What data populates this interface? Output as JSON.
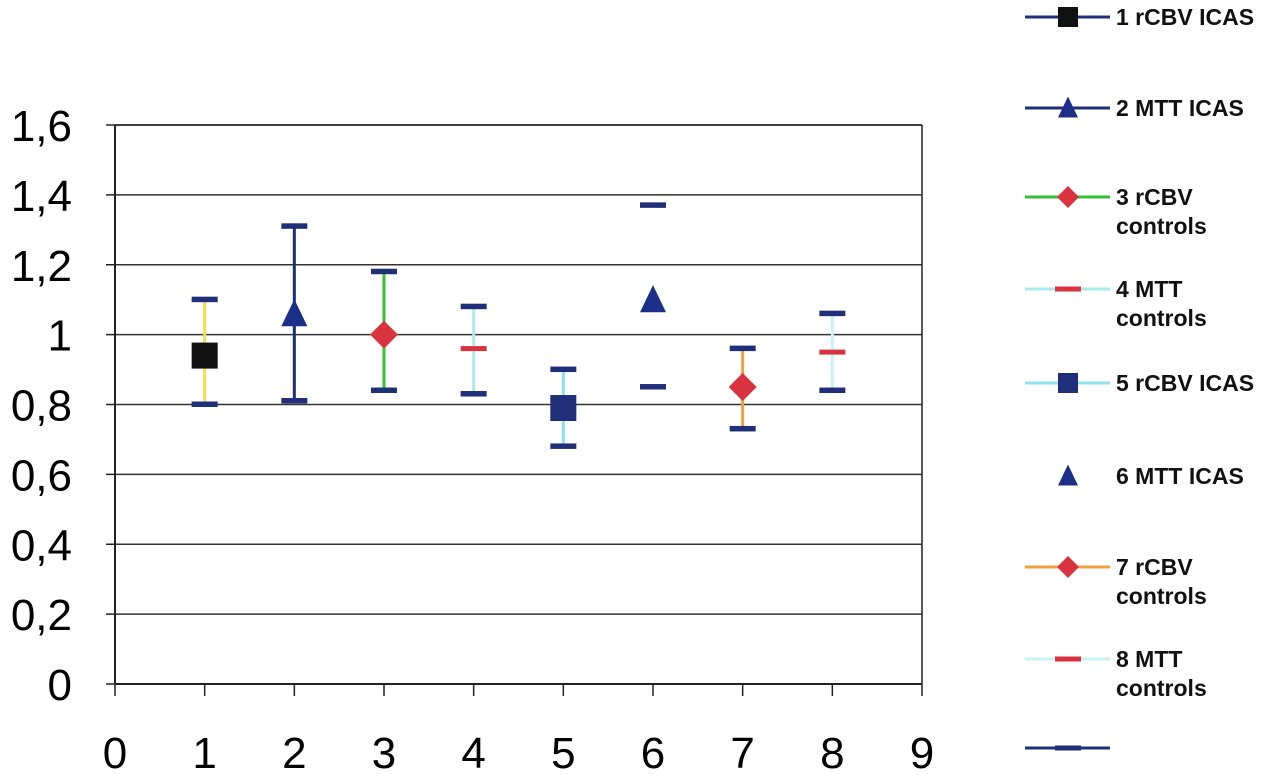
{
  "chart_data": {
    "type": "scatter",
    "title": "",
    "xlabel": "",
    "ylabel": "",
    "xlim": [
      0,
      9
    ],
    "ylim": [
      0,
      1.6
    ],
    "x_ticks": [
      0,
      1,
      2,
      3,
      4,
      5,
      6,
      7,
      8,
      9
    ],
    "x_tick_labels": [
      "0",
      "1",
      "2",
      "3",
      "4",
      "5",
      "6",
      "7",
      "8",
      "9"
    ],
    "y_ticks": [
      0,
      0.2,
      0.4,
      0.6,
      0.8,
      1.0,
      1.2,
      1.4,
      1.6
    ],
    "y_tick_labels": [
      "0",
      "0,2",
      "0,4",
      "0,6",
      "0,8",
      "1",
      "1,2",
      "1,4",
      "1,6"
    ],
    "grid": "horizontal",
    "legend_position": "right",
    "series": [
      {
        "name": "1 rCBV ICAS",
        "legend_lines": [
          "1 rCBV ICAS"
        ],
        "x": 1,
        "y": 0.94,
        "low": 0.8,
        "high": 1.1,
        "marker": "square",
        "marker_color": "#111111",
        "bar_color": "#f2e04a",
        "cap_color": "#1f2f78",
        "legend_line_color": "#1f2f78",
        "show_marker": true,
        "show_bar": true
      },
      {
        "name": "2 MTT ICAS",
        "legend_lines": [
          "2 MTT ICAS"
        ],
        "x": 2,
        "y": 1.06,
        "low": 0.81,
        "high": 1.31,
        "marker": "triangle",
        "marker_color": "#1b2f8a",
        "bar_color": "#1b2f78",
        "cap_color": "#1f2f78",
        "legend_line_color": "#1f2f78",
        "show_marker": true,
        "show_bar": true
      },
      {
        "name": "3 rCBV controls",
        "legend_lines": [
          "3 rCBV",
          "controls"
        ],
        "x": 3,
        "y": 1.0,
        "low": 0.84,
        "high": 1.18,
        "marker": "diamond",
        "marker_color": "#d93340",
        "bar_color": "#33c133",
        "cap_color": "#1f2f78",
        "legend_line_color": "#33c133",
        "show_marker": true,
        "show_bar": true
      },
      {
        "name": "4 MTT controls",
        "legend_lines": [
          "4 MTT",
          "controls"
        ],
        "x": 4,
        "y": 0.96,
        "low": 0.83,
        "high": 1.08,
        "marker": "dash",
        "marker_color": "#d93340",
        "bar_color": "#a9ecf0",
        "cap_color": "#1f2f78",
        "legend_line_color": "#a9ecf0",
        "show_marker": true,
        "show_bar": true
      },
      {
        "name": "5 rCBV ICAS",
        "legend_lines": [
          "5 rCBV ICAS"
        ],
        "x": 5,
        "y": 0.79,
        "low": 0.68,
        "high": 0.9,
        "marker": "square",
        "marker_color": "#1f2f78",
        "bar_color": "#8fe0ee",
        "cap_color": "#1f2f78",
        "legend_line_color": "#8fe0ee",
        "show_marker": true,
        "show_bar": true
      },
      {
        "name": "6 MTT ICAS",
        "legend_lines": [
          "6 MTT ICAS"
        ],
        "x": 6,
        "y": 1.1,
        "low": 0.85,
        "high": 1.37,
        "marker": "triangle",
        "marker_color": "#1b2f8a",
        "bar_color": "#ffffff",
        "cap_color": "#1f2f78",
        "legend_line_color": "#ffffff",
        "show_marker": true,
        "show_bar": false
      },
      {
        "name": "7 rCBV controls",
        "legend_lines": [
          "7 rCBV",
          "controls"
        ],
        "x": 7,
        "y": 0.85,
        "low": 0.73,
        "high": 0.96,
        "marker": "diamond",
        "marker_color": "#d93340",
        "bar_color": "#f0a040",
        "cap_color": "#1f2f78",
        "legend_line_color": "#f0a040",
        "show_marker": true,
        "show_bar": true
      },
      {
        "name": "8 MTT controls",
        "legend_lines": [
          "8 MTT",
          "controls"
        ],
        "x": 8,
        "y": 0.95,
        "low": 0.84,
        "high": 1.06,
        "marker": "dash",
        "marker_color": "#d93340",
        "bar_color": "#c8f2f6",
        "cap_color": "#1f2f78",
        "legend_line_color": "#c8f2f6",
        "show_marker": true,
        "show_bar": true
      },
      {
        "name": "",
        "legend_lines": [],
        "legend_only": true,
        "marker": "dash",
        "marker_color": "#1f2f78",
        "legend_line_color": "#1f2f78"
      }
    ]
  },
  "colors": {
    "axis": "#222222",
    "grid": "#333333",
    "cap": "#1f2f78"
  }
}
